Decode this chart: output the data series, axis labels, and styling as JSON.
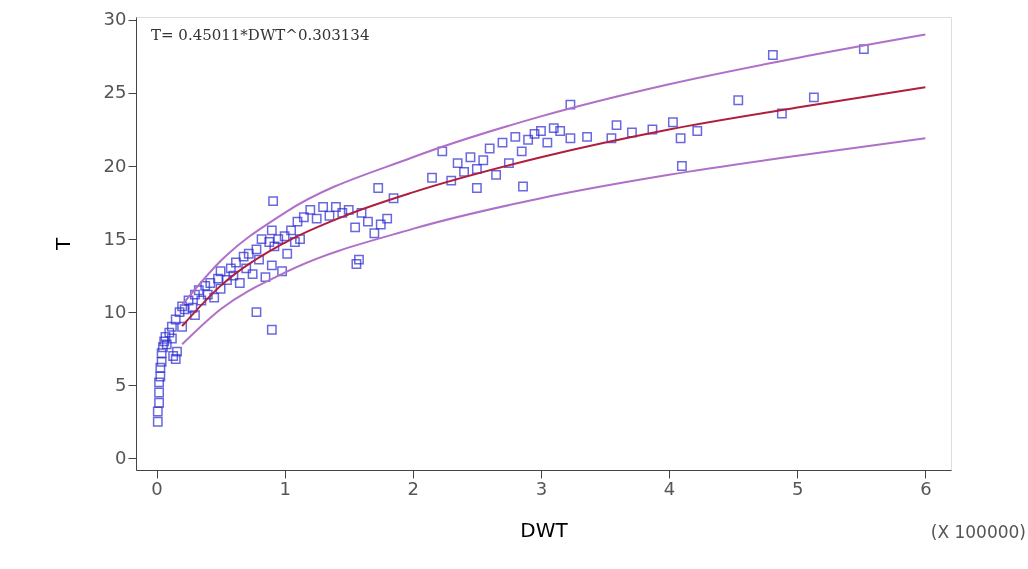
{
  "chart_data": {
    "type": "scatter",
    "xlabel": "DWT",
    "ylabel": "T",
    "annotations": [
      "T= 0.45011*DWT^0.303134",
      "(X 100000)"
    ],
    "xlim": [
      -0.16,
      6.2
    ],
    "ylim": [
      -0.8,
      30.2
    ],
    "xticks": [
      0,
      1,
      2,
      3,
      4,
      5,
      6
    ],
    "yticks": [
      0,
      5,
      10,
      15,
      20,
      25,
      30
    ],
    "grid": false,
    "marker": "square",
    "series": [
      {
        "color": "#2a2ad0",
        "x": [
          0.01,
          0.01,
          0.02,
          0.02,
          0.02,
          0.03,
          0.03,
          0.04,
          0.04,
          0.05,
          0.06,
          0.07,
          0.08,
          0.1,
          0.12,
          0.13,
          0.15,
          0.16,
          0.12,
          0.15,
          0.18,
          0.2,
          0.2,
          0.22,
          0.25,
          0.28,
          0.3,
          0.3,
          0.33,
          0.35,
          0.38,
          0.4,
          0.42,
          0.45,
          0.48,
          0.5,
          0.5,
          0.55,
          0.58,
          0.6,
          0.62,
          0.65,
          0.68,
          0.7,
          0.72,
          0.75,
          0.78,
          0.8,
          0.82,
          0.85,
          0.88,
          0.9,
          0.9,
          0.92,
          0.95,
          0.98,
          1.0,
          1.02,
          1.05,
          1.08,
          1.1,
          1.12,
          1.15,
          1.2,
          1.25,
          1.3,
          1.35,
          1.4,
          1.45,
          1.5,
          1.55,
          1.6,
          1.65,
          1.7,
          0.78,
          0.9,
          0.91,
          1.56,
          1.58,
          1.73,
          1.75,
          1.8,
          1.85,
          2.15,
          2.23,
          2.3,
          2.35,
          2.4,
          2.45,
          2.5,
          2.5,
          2.55,
          2.6,
          2.65,
          2.7,
          2.75,
          2.8,
          2.85,
          2.86,
          2.9,
          2.95,
          3.0,
          3.05,
          3.1,
          3.15,
          3.23,
          3.23,
          3.36,
          3.55,
          3.59,
          3.71,
          3.87,
          4.03,
          4.09,
          4.1,
          4.22,
          4.54,
          4.81,
          4.88,
          5.13,
          5.52
        ],
        "values": [
          2.5,
          3.2,
          3.8,
          4.5,
          5.2,
          5.6,
          6.2,
          6.6,
          7.2,
          7.6,
          8.0,
          8.3,
          7.8,
          8.6,
          8.2,
          7.0,
          6.8,
          7.3,
          9.0,
          9.5,
          10.0,
          9.0,
          10.4,
          10.2,
          10.8,
          10.3,
          11.2,
          9.8,
          11.5,
          10.8,
          11.8,
          11.2,
          12.0,
          11.0,
          12.3,
          11.6,
          12.8,
          12.2,
          13.0,
          12.5,
          13.4,
          12.0,
          13.8,
          13.0,
          14.0,
          12.6,
          14.3,
          13.6,
          15.0,
          12.4,
          14.8,
          15.6,
          13.2,
          14.5,
          15.0,
          12.8,
          15.2,
          14.0,
          15.6,
          14.8,
          16.2,
          15.0,
          16.5,
          17.0,
          16.4,
          17.2,
          16.6,
          17.2,
          16.8,
          17.0,
          15.8,
          16.8,
          16.2,
          15.4,
          10.0,
          8.8,
          17.6,
          13.3,
          13.6,
          18.5,
          16.0,
          16.4,
          17.8,
          19.2,
          21.0,
          19.0,
          20.2,
          19.6,
          20.6,
          18.5,
          19.8,
          20.4,
          21.2,
          19.4,
          21.6,
          20.2,
          22.0,
          21.0,
          18.6,
          21.8,
          22.2,
          22.4,
          21.6,
          22.6,
          22.4,
          24.2,
          21.9,
          22.0,
          21.9,
          22.8,
          22.3,
          22.5,
          23.0,
          21.9,
          20.0,
          22.4,
          24.5,
          27.6,
          23.6,
          24.7,
          28.0
        ]
      },
      {
        "type": "line",
        "color": "#b01e3c",
        "marker": "none",
        "x": [
          0.2,
          0.5,
          1,
          1.5,
          2,
          3,
          4,
          5,
          6
        ],
        "values": [
          9.05,
          11.8,
          14.75,
          16.7,
          18.2,
          20.6,
          22.5,
          24.0,
          25.4
        ]
      },
      {
        "type": "line",
        "color": "#b070c8",
        "marker": "none",
        "x": [
          0.2,
          0.5,
          1,
          2,
          3,
          4,
          5,
          6
        ],
        "values": [
          10.5,
          13.5,
          16.8,
          20.6,
          23.4,
          25.6,
          27.4,
          29.0
        ]
      },
      {
        "type": "line",
        "color": "#b070c8",
        "marker": "none",
        "x": [
          0.2,
          0.5,
          1,
          2,
          3,
          4,
          5,
          6
        ],
        "values": [
          7.8,
          10.2,
          12.7,
          15.7,
          17.8,
          19.4,
          20.7,
          21.9
        ]
      }
    ]
  }
}
